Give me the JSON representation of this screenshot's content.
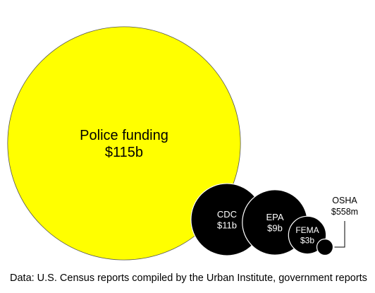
{
  "chart_data": {
    "type": "bubble",
    "title": "",
    "unit": "USD",
    "bubbles": [
      {
        "name": "Police funding",
        "value_label": "$115b",
        "value_billion": 115,
        "fill": "#ffff00",
        "text_color": "#000000"
      },
      {
        "name": "CDC",
        "value_label": "$11b",
        "value_billion": 11,
        "fill": "#000000",
        "text_color": "#ffffff"
      },
      {
        "name": "EPA",
        "value_label": "$9b",
        "value_billion": 9,
        "fill": "#000000",
        "text_color": "#ffffff"
      },
      {
        "name": "FEMA",
        "value_label": "$3b",
        "value_billion": 3,
        "fill": "#000000",
        "text_color": "#ffffff"
      },
      {
        "name": "OSHA",
        "value_label": "$558m",
        "value_billion": 0.558,
        "fill": "#000000",
        "text_color": "#000000"
      }
    ]
  },
  "source_note": "Data: U.S. Census reports compiled by the Urban Institute, government reports"
}
